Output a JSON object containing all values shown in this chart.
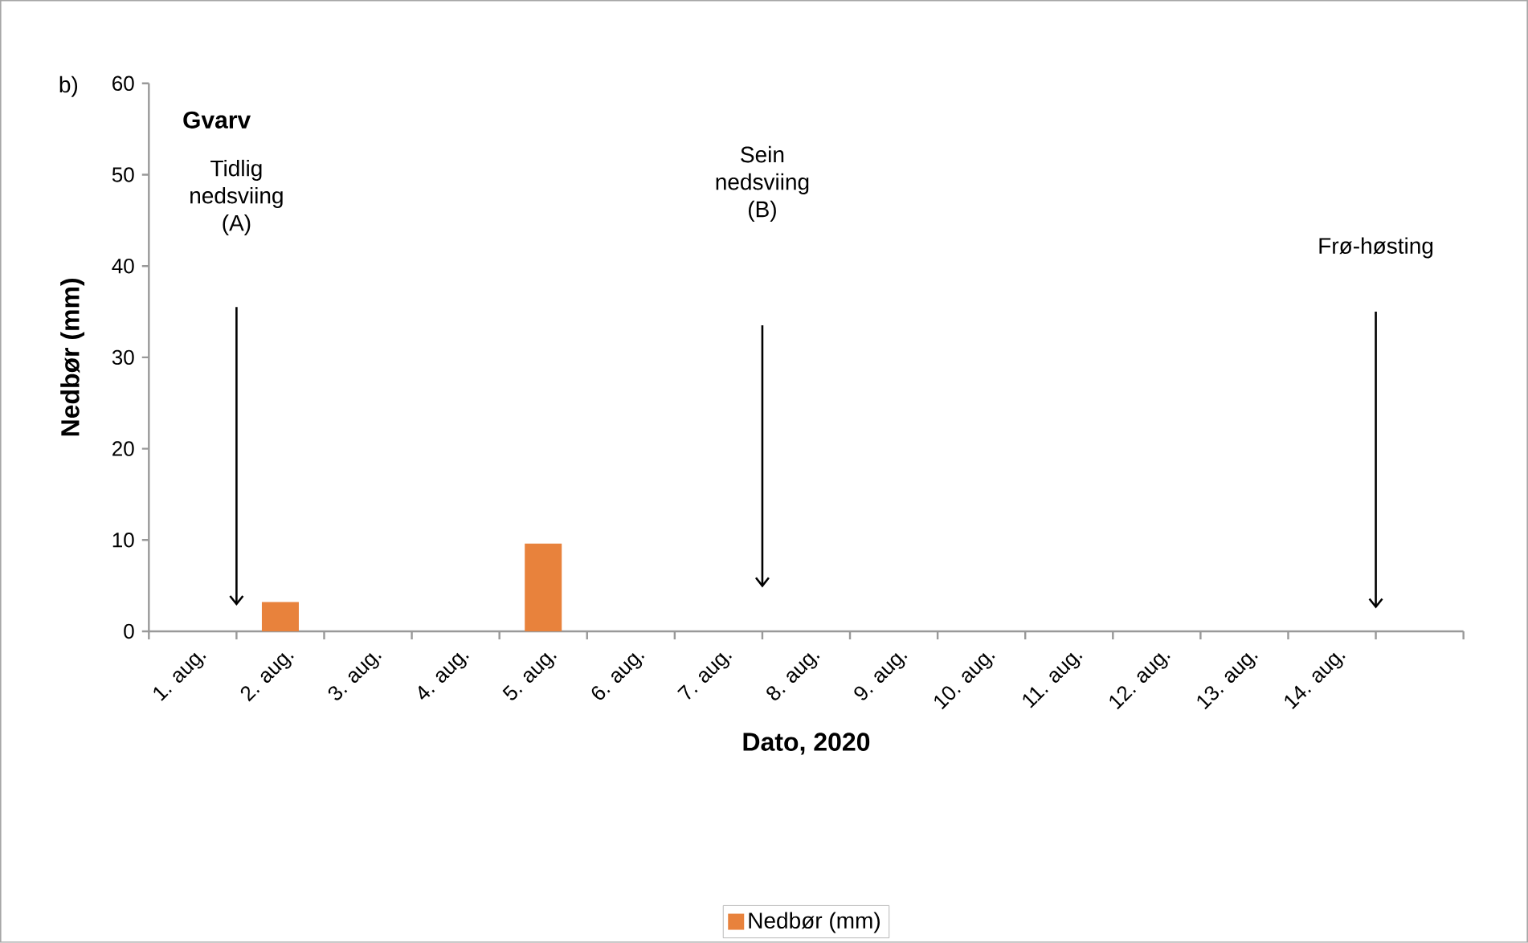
{
  "chart_data": {
    "type": "bar",
    "title": "Gvarv",
    "xlabel": "Dato, 2020",
    "ylabel": "Nedbør (mm)",
    "categories": [
      "1. aug.",
      "2. aug.",
      "3. aug.",
      "4. aug.",
      "5. aug.",
      "6. aug.",
      "7. aug.",
      "8. aug.",
      "9. aug.",
      "10. aug.",
      "11. aug.",
      "12. aug.",
      "13. aug.",
      "14. aug.",
      null
    ],
    "series": [
      {
        "name": "Nedbør (mm)",
        "color": "#e8823c",
        "values": [
          0,
          3.2,
          0,
          0,
          9.6,
          0,
          0,
          0,
          0,
          0,
          0,
          0,
          0,
          0,
          null
        ]
      }
    ],
    "ylim": [
      0,
      60
    ],
    "yticks": [
      0,
      10,
      20,
      30,
      40,
      50,
      60
    ],
    "grid": false,
    "legend": "bottom",
    "annotations": [
      "b)",
      "Tidlig nedsviing (A)",
      "Sein nedsviing (B)",
      "Frø-høsting"
    ]
  }
}
